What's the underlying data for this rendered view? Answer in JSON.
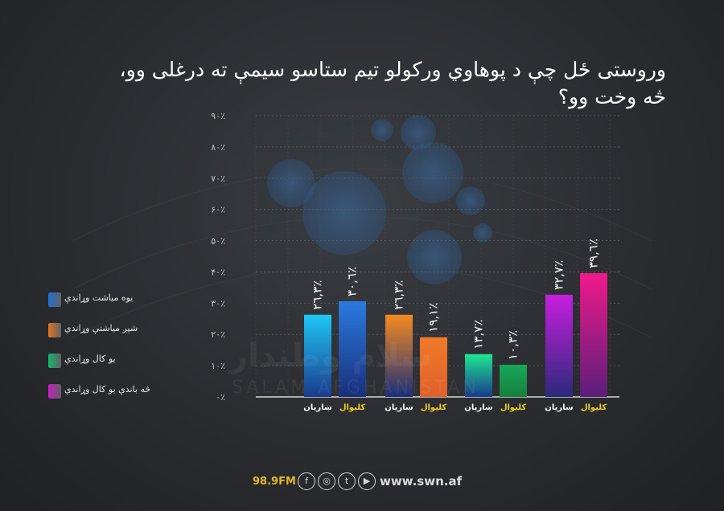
{
  "title": "وروستی ځل چې د پوهاوي ورکولو تيم ستاسو سيمې ته درغلی وو، څه وخت وو؟",
  "legend": [
    {
      "label": "يوه مياشت وړاندې",
      "color": "#1f6fd8"
    },
    {
      "label": "شپږ مياشتې وړاندې",
      "color": "#e3741e"
    },
    {
      "label": "يو کال وړاندې",
      "color": "#12b86a"
    },
    {
      "label": "څه باندې يو کال وړاندې",
      "color": "#c81ec8"
    }
  ],
  "chart_data": {
    "type": "bar",
    "y_ticks": [
      "۰٪",
      "۱۰٪",
      "۲۰٪",
      "۳۰٪",
      "۴۰٪",
      "۵۰٪",
      "۶۰٪",
      "۷۰٪",
      "۸۰٪",
      "۹۰٪"
    ],
    "ylim": [
      0,
      90
    ],
    "grid": true,
    "groups": [
      {
        "legend": "يوه مياشت وړاندې",
        "bars": [
          {
            "category": "ښاريان",
            "value": 26.3,
            "label": "٢٦,٣٪",
            "top": "#1ec8f5",
            "bottom": "#1a3a8c",
            "cat_color": "#ffffff"
          },
          {
            "category": "کليوال",
            "value": 30.6,
            "label": "٣٠,٦٪",
            "top": "#2a7be0",
            "bottom": "#1a2f7a",
            "cat_color": "#f5d21e"
          }
        ]
      },
      {
        "legend": "شپږ مياشتې وړاندې",
        "bars": [
          {
            "category": "ښاريان",
            "value": 26.3,
            "label": "٢٦,٣٪",
            "top": "#f58a1e",
            "bottom": "#1a2f7a",
            "cat_color": "#ffffff"
          },
          {
            "category": "کليوال",
            "value": 19.1,
            "label": "١٩,١٪",
            "top": "#f07a2a",
            "bottom": "#e0602a",
            "cat_color": "#f5d21e"
          }
        ]
      },
      {
        "legend": "يو کال وړاندې",
        "bars": [
          {
            "category": "ښاريان",
            "value": 13.7,
            "label": "١٣,٧٪",
            "top": "#1ee890",
            "bottom": "#1a3a8c",
            "cat_color": "#ffffff"
          },
          {
            "category": "کليوال",
            "value": 10.3,
            "label": "١٠,٣٪",
            "top": "#18a85a",
            "bottom": "#16803e",
            "cat_color": "#f5d21e"
          }
        ]
      },
      {
        "legend": "څه باندې يو کال وړاندې",
        "bars": [
          {
            "category": "ښاريان",
            "value": 32.7,
            "label": "٣٢,٧٪",
            "top": "#c81ee0",
            "bottom": "#2a2a7a",
            "cat_color": "#ffffff"
          },
          {
            "category": "کليوال",
            "value": 39.6,
            "label": "٣٩,٦٪",
            "top": "#f01a8a",
            "bottom": "#5a1e7a",
            "cat_color": "#f5d21e"
          }
        ]
      }
    ]
  },
  "watermark": {
    "arabic": "سلام وطندار",
    "latin": "SALAM AFGHANISTAN"
  },
  "footer": {
    "frequency": "98.9FM",
    "website": "www.swn.af",
    "social_icons": [
      {
        "name": "facebook-icon",
        "glyph": "f"
      },
      {
        "name": "instagram-icon",
        "glyph": "◎"
      },
      {
        "name": "twitter-icon",
        "glyph": "t"
      },
      {
        "name": "youtube-icon",
        "glyph": "▶"
      }
    ]
  }
}
